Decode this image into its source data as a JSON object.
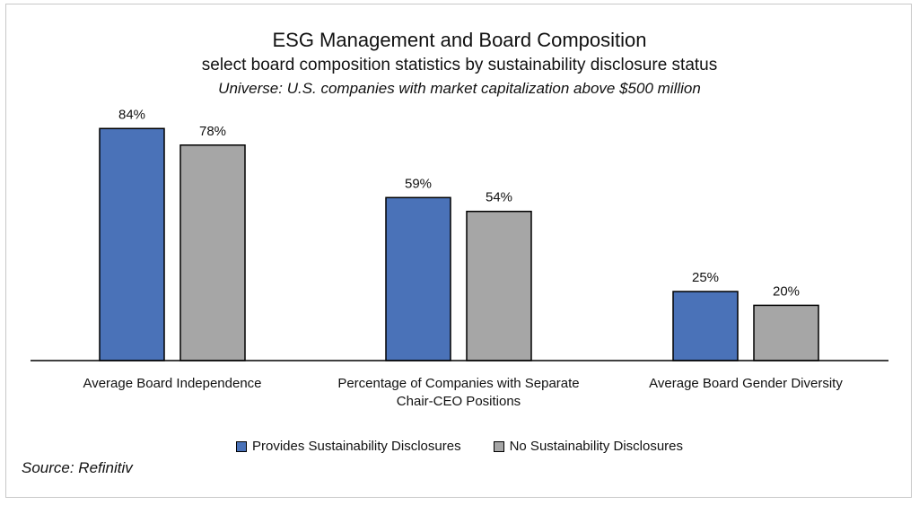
{
  "chart_data": {
    "type": "bar",
    "title": "ESG Management and Board Composition",
    "subtitle": "select board composition statistics by sustainability disclosure status",
    "universe": "Universe: U.S. companies with market capitalization above $500 million",
    "categories": [
      [
        "Average Board Independence"
      ],
      [
        "Percentage of Companies with Separate",
        "Chair-CEO Positions"
      ],
      [
        "Average Board Gender Diversity"
      ]
    ],
    "series": [
      {
        "name": "Provides Sustainability Disclosures",
        "color": "#4a72b8",
        "values": [
          84,
          59,
          25
        ],
        "labels": [
          "84%",
          "59%",
          "25%"
        ]
      },
      {
        "name": "No Sustainability Disclosures",
        "color": "#a6a6a6",
        "values": [
          78,
          54,
          20
        ],
        "labels": [
          "78%",
          "54%",
          "20%"
        ]
      }
    ],
    "ylim": [
      0,
      100
    ],
    "grid": false,
    "legend_position": "bottom",
    "source": "Source: Refinitiv"
  }
}
